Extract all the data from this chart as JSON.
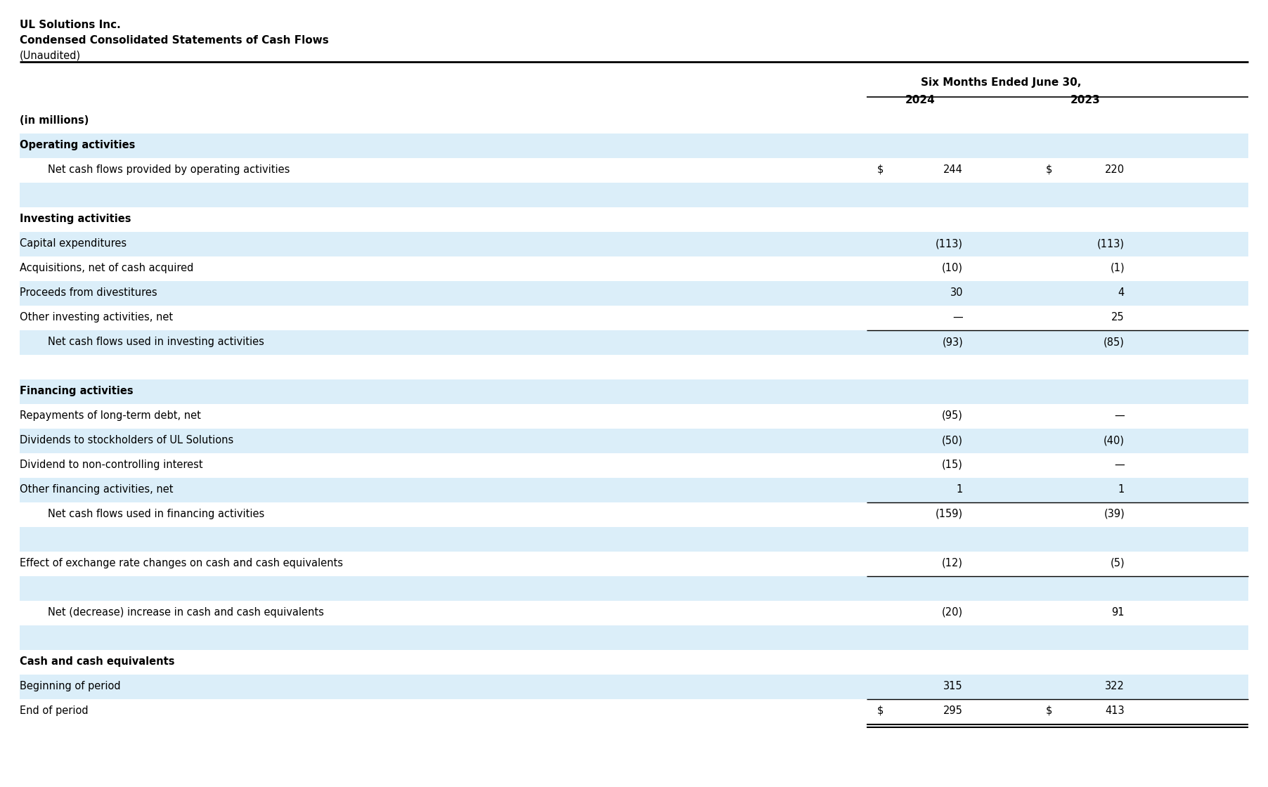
{
  "company": "UL Solutions Inc.",
  "title": "Condensed Consolidated Statements of Cash Flows",
  "subtitle": "(Unaudited)",
  "header_period": "Six Months Ended June 30,",
  "col1_header": "2024",
  "col2_header": "2023",
  "bg_color": "#ffffff",
  "highlight_color": "#dbeef9",
  "rows": [
    {
      "label": "(in millions)",
      "val1": "",
      "val2": "",
      "indent": 0,
      "bold": true,
      "underline": true,
      "bg": false,
      "dollar1": false,
      "dollar2": false,
      "underline_below": false,
      "double_underline_below": false
    },
    {
      "label": "Operating activities",
      "val1": "",
      "val2": "",
      "indent": 0,
      "bold": true,
      "underline": false,
      "bg": true,
      "dollar1": false,
      "dollar2": false,
      "underline_below": false,
      "double_underline_below": false
    },
    {
      "label": "Net cash flows provided by operating activities",
      "val1": "244",
      "val2": "220",
      "indent": 1,
      "bold": false,
      "underline": false,
      "bg": false,
      "dollar1": true,
      "dollar2": true,
      "underline_below": false,
      "double_underline_below": false
    },
    {
      "label": "",
      "val1": "",
      "val2": "",
      "indent": 0,
      "bold": false,
      "underline": false,
      "bg": true,
      "dollar1": false,
      "dollar2": false,
      "underline_below": false,
      "double_underline_below": false
    },
    {
      "label": "Investing activities",
      "val1": "",
      "val2": "",
      "indent": 0,
      "bold": true,
      "underline": false,
      "bg": false,
      "dollar1": false,
      "dollar2": false,
      "underline_below": false,
      "double_underline_below": false
    },
    {
      "label": "Capital expenditures",
      "val1": "(113)",
      "val2": "(113)",
      "indent": 0,
      "bold": false,
      "underline": false,
      "bg": true,
      "dollar1": false,
      "dollar2": false,
      "underline_below": false,
      "double_underline_below": false
    },
    {
      "label": "Acquisitions, net of cash acquired",
      "val1": "(10)",
      "val2": "(1)",
      "indent": 0,
      "bold": false,
      "underline": false,
      "bg": false,
      "dollar1": false,
      "dollar2": false,
      "underline_below": false,
      "double_underline_below": false
    },
    {
      "label": "Proceeds from divestitures",
      "val1": "30",
      "val2": "4",
      "indent": 0,
      "bold": false,
      "underline": false,
      "bg": true,
      "dollar1": false,
      "dollar2": false,
      "underline_below": false,
      "double_underline_below": false
    },
    {
      "label": "Other investing activities, net",
      "val1": "—",
      "val2": "25",
      "indent": 0,
      "bold": false,
      "underline": false,
      "bg": false,
      "dollar1": false,
      "dollar2": false,
      "underline_below": true,
      "double_underline_below": false
    },
    {
      "label": "Net cash flows used in investing activities",
      "val1": "(93)",
      "val2": "(85)",
      "indent": 1,
      "bold": false,
      "underline": false,
      "bg": true,
      "dollar1": false,
      "dollar2": false,
      "underline_below": false,
      "double_underline_below": false
    },
    {
      "label": "",
      "val1": "",
      "val2": "",
      "indent": 0,
      "bold": false,
      "underline": false,
      "bg": false,
      "dollar1": false,
      "dollar2": false,
      "underline_below": false,
      "double_underline_below": false
    },
    {
      "label": "Financing activities",
      "val1": "",
      "val2": "",
      "indent": 0,
      "bold": true,
      "underline": false,
      "bg": true,
      "dollar1": false,
      "dollar2": false,
      "underline_below": false,
      "double_underline_below": false
    },
    {
      "label": "Repayments of long-term debt, net",
      "val1": "(95)",
      "val2": "—",
      "indent": 0,
      "bold": false,
      "underline": false,
      "bg": false,
      "dollar1": false,
      "dollar2": false,
      "underline_below": false,
      "double_underline_below": false
    },
    {
      "label": "Dividends to stockholders of UL Solutions",
      "val1": "(50)",
      "val2": "(40)",
      "indent": 0,
      "bold": false,
      "underline": false,
      "bg": true,
      "dollar1": false,
      "dollar2": false,
      "underline_below": false,
      "double_underline_below": false
    },
    {
      "label": "Dividend to non-controlling interest",
      "val1": "(15)",
      "val2": "—",
      "indent": 0,
      "bold": false,
      "underline": false,
      "bg": false,
      "dollar1": false,
      "dollar2": false,
      "underline_below": false,
      "double_underline_below": false
    },
    {
      "label": "Other financing activities, net",
      "val1": "1",
      "val2": "1",
      "indent": 0,
      "bold": false,
      "underline": false,
      "bg": true,
      "dollar1": false,
      "dollar2": false,
      "underline_below": true,
      "double_underline_below": false
    },
    {
      "label": "Net cash flows used in financing activities",
      "val1": "(159)",
      "val2": "(39)",
      "indent": 1,
      "bold": false,
      "underline": false,
      "bg": false,
      "dollar1": false,
      "dollar2": false,
      "underline_below": false,
      "double_underline_below": false
    },
    {
      "label": "",
      "val1": "",
      "val2": "",
      "indent": 0,
      "bold": false,
      "underline": false,
      "bg": true,
      "dollar1": false,
      "dollar2": false,
      "underline_below": false,
      "double_underline_below": false
    },
    {
      "label": "Effect of exchange rate changes on cash and cash equivalents",
      "val1": "(12)",
      "val2": "(5)",
      "indent": 0,
      "bold": false,
      "underline": false,
      "bg": false,
      "dollar1": false,
      "dollar2": false,
      "underline_below": true,
      "double_underline_below": false
    },
    {
      "label": "",
      "val1": "",
      "val2": "",
      "indent": 0,
      "bold": false,
      "underline": false,
      "bg": true,
      "dollar1": false,
      "dollar2": false,
      "underline_below": false,
      "double_underline_below": false
    },
    {
      "label": "Net (decrease) increase in cash and cash equivalents",
      "val1": "(20)",
      "val2": "91",
      "indent": 1,
      "bold": false,
      "underline": false,
      "bg": false,
      "dollar1": false,
      "dollar2": false,
      "underline_below": false,
      "double_underline_below": false
    },
    {
      "label": "",
      "val1": "",
      "val2": "",
      "indent": 0,
      "bold": false,
      "underline": false,
      "bg": true,
      "dollar1": false,
      "dollar2": false,
      "underline_below": false,
      "double_underline_below": false
    },
    {
      "label": "Cash and cash equivalents",
      "val1": "",
      "val2": "",
      "indent": 0,
      "bold": true,
      "underline": false,
      "bg": false,
      "dollar1": false,
      "dollar2": false,
      "underline_below": false,
      "double_underline_below": false
    },
    {
      "label": "Beginning of period",
      "val1": "315",
      "val2": "322",
      "indent": 0,
      "bold": false,
      "underline": false,
      "bg": true,
      "dollar1": false,
      "dollar2": false,
      "underline_below": true,
      "double_underline_below": false
    },
    {
      "label": "End of period",
      "val1": "295",
      "val2": "413",
      "indent": 0,
      "bold": false,
      "underline": false,
      "bg": false,
      "dollar1": true,
      "dollar2": true,
      "underline_below": false,
      "double_underline_below": true
    }
  ],
  "fig_width": 18.04,
  "fig_height": 11.2,
  "dpi": 100
}
